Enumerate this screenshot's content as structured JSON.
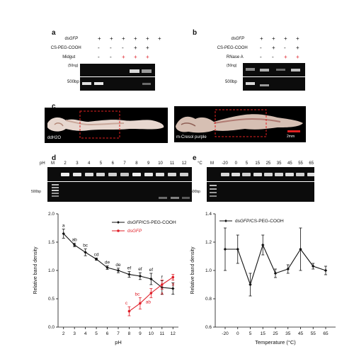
{
  "panel_a": {
    "letter": "a",
    "rows": [
      {
        "name": "dsGFP",
        "signs": [
          "+",
          "+",
          "+",
          "+",
          "+",
          "+"
        ]
      },
      {
        "name": "CS-PEG-COOH",
        "signs": [
          "-",
          "-",
          "-",
          "+",
          "+",
          ""
        ]
      },
      {
        "name": "Midgut",
        "signs": [
          "-",
          "-",
          "+",
          "+",
          "+",
          ""
        ]
      }
    ],
    "size_labels": [
      "(50ng)",
      "500bp"
    ]
  },
  "panel_b": {
    "letter": "b",
    "rows": [
      {
        "name": "dsGFP",
        "signs": [
          "+",
          "+",
          "+",
          "+"
        ]
      },
      {
        "name": "CS-PEG-COOH",
        "signs": [
          "-",
          "+",
          "-",
          "+"
        ]
      },
      {
        "name": "RNase A",
        "signs": [
          "-",
          "-",
          "+",
          "+"
        ]
      }
    ],
    "size_labels": [
      "(50ng)",
      "500bp"
    ]
  },
  "panel_c": {
    "letter": "c",
    "left_caption": "ddH2O",
    "right_caption": "m-Cresol purple",
    "scale_bar": "2mm"
  },
  "panel_d": {
    "letter": "d",
    "gel_axis": "pH",
    "gel_marker": "M",
    "gel_lanes": [
      "2",
      "3",
      "4",
      "5",
      "6",
      "7",
      "8",
      "9",
      "10",
      "11",
      "12"
    ],
    "size_label": "500bp"
  },
  "panel_e": {
    "letter": "e",
    "gel_axis": "°C",
    "gel_marker": "M",
    "gel_lanes": [
      "-20",
      "0",
      "5",
      "15",
      "25",
      "35",
      "45",
      "55",
      "65"
    ],
    "size_label": "500bp"
  },
  "colors": {
    "black_series": "#111111",
    "red_series": "#e0202a",
    "gel_bg": "#0c0c0c",
    "box": "#e02020"
  },
  "chart_data": [
    {
      "type": "line",
      "xlabel": "pH",
      "ylabel": "Relative band density",
      "xlim": [
        1.5,
        12.5
      ],
      "ylim": [
        0.0,
        2.0
      ],
      "x_ticks": [
        "2",
        "3",
        "4",
        "5",
        "6",
        "7",
        "8",
        "9",
        "10",
        "11",
        "12"
      ],
      "y_ticks": [
        "0.0",
        "0.5",
        "1.0",
        "1.5",
        "2.0"
      ],
      "legend_position": "top-right",
      "series": [
        {
          "name": "dsGFP/CS-PEG-COOH",
          "color": "#111111",
          "x": [
            2,
            3,
            4,
            5,
            6,
            7,
            8,
            9,
            10,
            11,
            12
          ],
          "values": [
            1.65,
            1.45,
            1.32,
            1.2,
            1.05,
            1.0,
            0.93,
            0.9,
            0.85,
            0.7,
            0.68
          ],
          "errors": [
            0.08,
            0.03,
            0.06,
            0.02,
            0.03,
            0.04,
            0.05,
            0.06,
            0.1,
            0.12,
            0.1
          ],
          "letters": [
            "a",
            "ab",
            "bc",
            "cd",
            "de",
            "de",
            "ef",
            "ef",
            "ef",
            "f",
            "f"
          ]
        },
        {
          "name": "dsGFP",
          "color": "#e0202a",
          "x": [
            8,
            9,
            10,
            11,
            12
          ],
          "values": [
            0.28,
            0.42,
            0.6,
            0.75,
            0.88
          ],
          "errors": [
            0.08,
            0.1,
            0.08,
            0.08,
            0.05
          ],
          "letters": [
            "c",
            "bc",
            "ab",
            "a",
            "a"
          ]
        }
      ]
    },
    {
      "type": "line",
      "xlabel": "Temperature (°C)",
      "ylabel": "Relative band density",
      "categories": [
        "-20",
        "0",
        "5",
        "15",
        "25",
        "35",
        "45",
        "55",
        "65"
      ],
      "ylim": [
        0.6,
        1.4
      ],
      "y_ticks": [
        "0.6",
        "0.8",
        "1.0",
        "1.2",
        "1.4"
      ],
      "legend_position": "top-left",
      "series": [
        {
          "name": "dsGFP/CS-PEG-COOH",
          "color": "#111111",
          "values": [
            1.15,
            1.15,
            0.9,
            1.18,
            0.98,
            1.01,
            1.15,
            1.03,
            1.0
          ],
          "errors": [
            0.15,
            0.1,
            0.08,
            0.07,
            0.03,
            0.03,
            0.15,
            0.02,
            0.03
          ]
        }
      ]
    }
  ]
}
